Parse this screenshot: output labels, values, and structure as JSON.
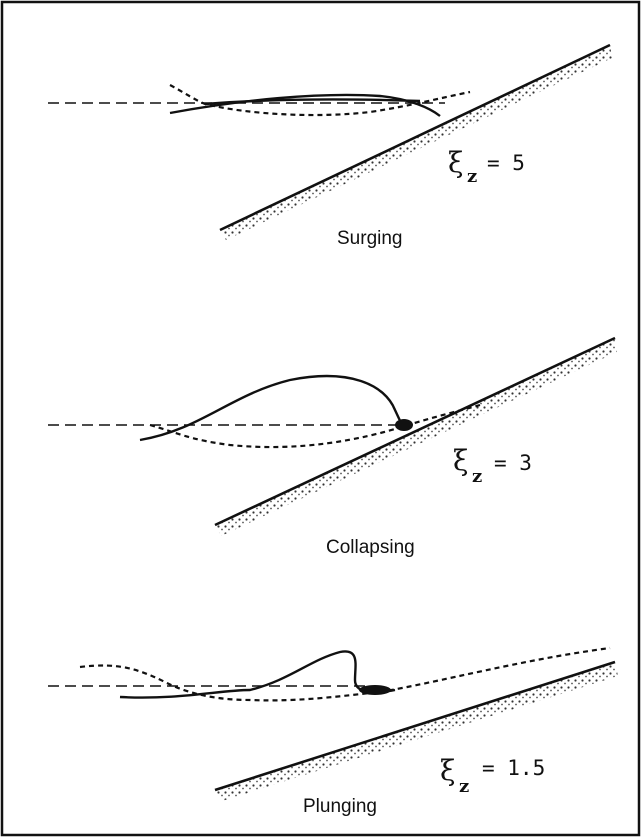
{
  "panels": [
    {
      "label": "Surging",
      "symbol": "ξ",
      "subscript": "z",
      "relation": "= 5"
    },
    {
      "label": "Collapsing",
      "symbol": "ξ",
      "subscript": "z",
      "relation": "= 3"
    },
    {
      "label": "Plunging",
      "symbol": "ξ",
      "subscript": "z",
      "relation": "= 1.5"
    }
  ]
}
